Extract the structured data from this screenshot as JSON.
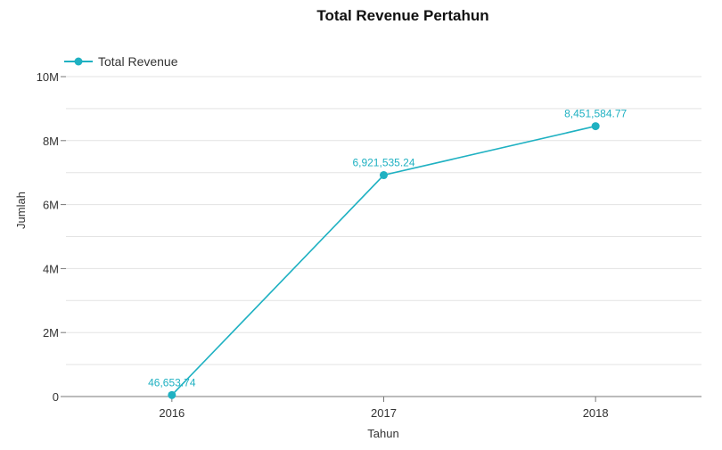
{
  "chart_data": {
    "type": "line",
    "title": "Total Revenue Pertahun",
    "xlabel": "Tahun",
    "ylabel": "Jumlah",
    "categories": [
      "2016",
      "2017",
      "2018"
    ],
    "series": [
      {
        "name": "Total Revenue",
        "values": [
          46653.74,
          6921535.24,
          8451584.77
        ],
        "labels": [
          "46,653.74",
          "6,921,535.24",
          "8,451,584.77"
        ]
      }
    ],
    "ylim": [
      0,
      10000000
    ],
    "yticks": [
      0,
      2000000,
      4000000,
      6000000,
      8000000,
      10000000
    ],
    "ytick_labels": [
      "0",
      "2M",
      "4M",
      "6M",
      "8M",
      "10M"
    ],
    "grid": true,
    "legend": "top-left",
    "colors": {
      "series": "#1fb1c2",
      "grid": "#e3e3e3",
      "axis": "#777777"
    }
  }
}
